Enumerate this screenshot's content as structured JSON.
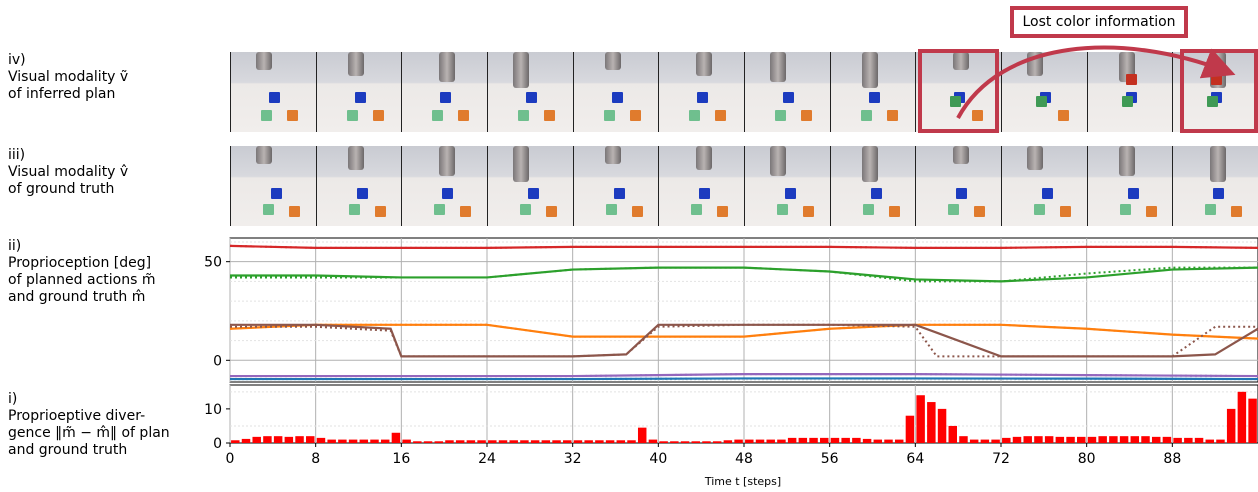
{
  "rows": {
    "iv": {
      "lines": [
        "iv)",
        "Visual modality ṽ",
        "of inferred plan"
      ]
    },
    "iii": {
      "lines": [
        "iii)",
        "Visual modality v̂",
        "of ground truth"
      ]
    },
    "ii": {
      "lines": [
        "ii)",
        "Proprioception [deg]",
        "of planned actions m̃",
        "and ground truth m̂"
      ]
    },
    "i": {
      "lines": [
        "i)",
        "Proprioeptive diver-",
        "gence ‖m̃ − m̂‖ of plan",
        "and ground truth"
      ]
    }
  },
  "annotation": {
    "text": "Lost color information"
  },
  "colors": {
    "red": "#d62728",
    "green": "#2ca02c",
    "orange": "#ff7f0e",
    "brown": "#8c564b",
    "purple": "#9467bd",
    "blue": "#1f77b4",
    "bar": "#ff0000",
    "callout": "#c0394b"
  },
  "chart_data": [
    {
      "type": "line",
      "ylabel": "Proprioception [deg]",
      "ylim": [
        -11,
        62
      ],
      "yticks": [
        0,
        50
      ],
      "grid": true,
      "note": "solid = ground truth, dotted = planned",
      "series": [
        {
          "color": "red",
          "x": [
            0,
            8,
            16,
            24,
            32,
            40,
            48,
            56,
            64,
            72,
            80,
            88,
            96
          ],
          "solid": [
            58,
            57,
            57,
            57,
            57.5,
            57.5,
            57.5,
            57.5,
            57,
            57,
            57.5,
            57.5,
            57
          ],
          "dotted": [
            58,
            57,
            57,
            57,
            57.5,
            57.5,
            57.5,
            57.5,
            57,
            57,
            57.5,
            57.5,
            57
          ]
        },
        {
          "color": "green",
          "x": [
            0,
            8,
            16,
            24,
            32,
            40,
            48,
            56,
            64,
            72,
            80,
            88,
            96
          ],
          "solid": [
            43,
            43,
            42,
            42,
            46,
            47,
            47,
            45,
            41,
            40,
            42,
            46,
            47
          ],
          "dotted": [
            42,
            42,
            42,
            42,
            46,
            47,
            47,
            45,
            40,
            40,
            44,
            47,
            47
          ]
        },
        {
          "color": "orange",
          "x": [
            0,
            8,
            16,
            24,
            32,
            40,
            48,
            56,
            64,
            72,
            80,
            88,
            96
          ],
          "solid": [
            16,
            18,
            18,
            18,
            12,
            12,
            12,
            16,
            18,
            18,
            16,
            13,
            11
          ],
          "dotted": [
            16,
            18,
            18,
            18,
            12,
            12,
            12,
            16,
            18,
            18,
            16,
            13,
            11
          ]
        },
        {
          "color": "brown",
          "x": [
            0,
            8,
            15,
            16,
            24,
            32,
            37,
            40,
            48,
            56,
            64,
            66,
            72,
            80,
            88,
            92,
            96
          ],
          "solid": [
            18,
            18,
            16,
            2,
            2,
            2,
            3,
            18,
            18,
            18,
            18,
            14,
            2,
            2,
            2,
            3,
            16
          ],
          "dotted": [
            17,
            17,
            15,
            2,
            2,
            2,
            3,
            17,
            18,
            18,
            17,
            2,
            2,
            2,
            2,
            17,
            17
          ]
        },
        {
          "color": "purple",
          "x": [
            0,
            16,
            32,
            48,
            64,
            80,
            96
          ],
          "solid": [
            -8,
            -8,
            -8,
            -7,
            -7,
            -7.5,
            -8
          ],
          "dotted": [
            -8,
            -8,
            -8,
            -7,
            -7,
            -7.5,
            -8
          ]
        },
        {
          "color": "blue",
          "x": [
            0,
            16,
            32,
            48,
            64,
            80,
            96
          ],
          "solid": [
            -9.5,
            -9.5,
            -9.5,
            -9.2,
            -9.2,
            -9.3,
            -9.5
          ],
          "dotted": [
            -9.5,
            -9.5,
            -9.5,
            -9.2,
            -9.2,
            -9.3,
            -9.5
          ]
        }
      ]
    },
    {
      "type": "bar",
      "xlabel": "Time t [steps]",
      "ylim": [
        0,
        17
      ],
      "yticks": [
        0,
        10
      ],
      "xticks": [
        0,
        8,
        16,
        24,
        32,
        40,
        48,
        56,
        64,
        72,
        80,
        88
      ],
      "xlim": [
        0,
        96
      ],
      "values": [
        0.8,
        1.2,
        1.8,
        2,
        2,
        1.8,
        2,
        2,
        1.5,
        1,
        1,
        1,
        1,
        1,
        1,
        3,
        1,
        0.5,
        0.5,
        0.5,
        0.8,
        0.8,
        0.8,
        0.8,
        0.8,
        0.8,
        0.8,
        0.8,
        0.8,
        0.8,
        0.8,
        0.8,
        0.8,
        0.8,
        0.8,
        0.8,
        0.8,
        0.8,
        4.5,
        1,
        0.5,
        0.5,
        0.5,
        0.5,
        0.5,
        0.5,
        0.8,
        1,
        1,
        1,
        1,
        1,
        1.5,
        1.5,
        1.5,
        1.5,
        1.5,
        1.5,
        1.5,
        1.2,
        1,
        1,
        1,
        8,
        14,
        12,
        10,
        5,
        2,
        1,
        1,
        1,
        1.5,
        1.8,
        2,
        2,
        2,
        1.8,
        1.8,
        1.8,
        1.8,
        2,
        2,
        2,
        2,
        2,
        1.8,
        1.8,
        1.5,
        1.5,
        1.5,
        1,
        1,
        10,
        15,
        13,
        4
      ]
    }
  ]
}
